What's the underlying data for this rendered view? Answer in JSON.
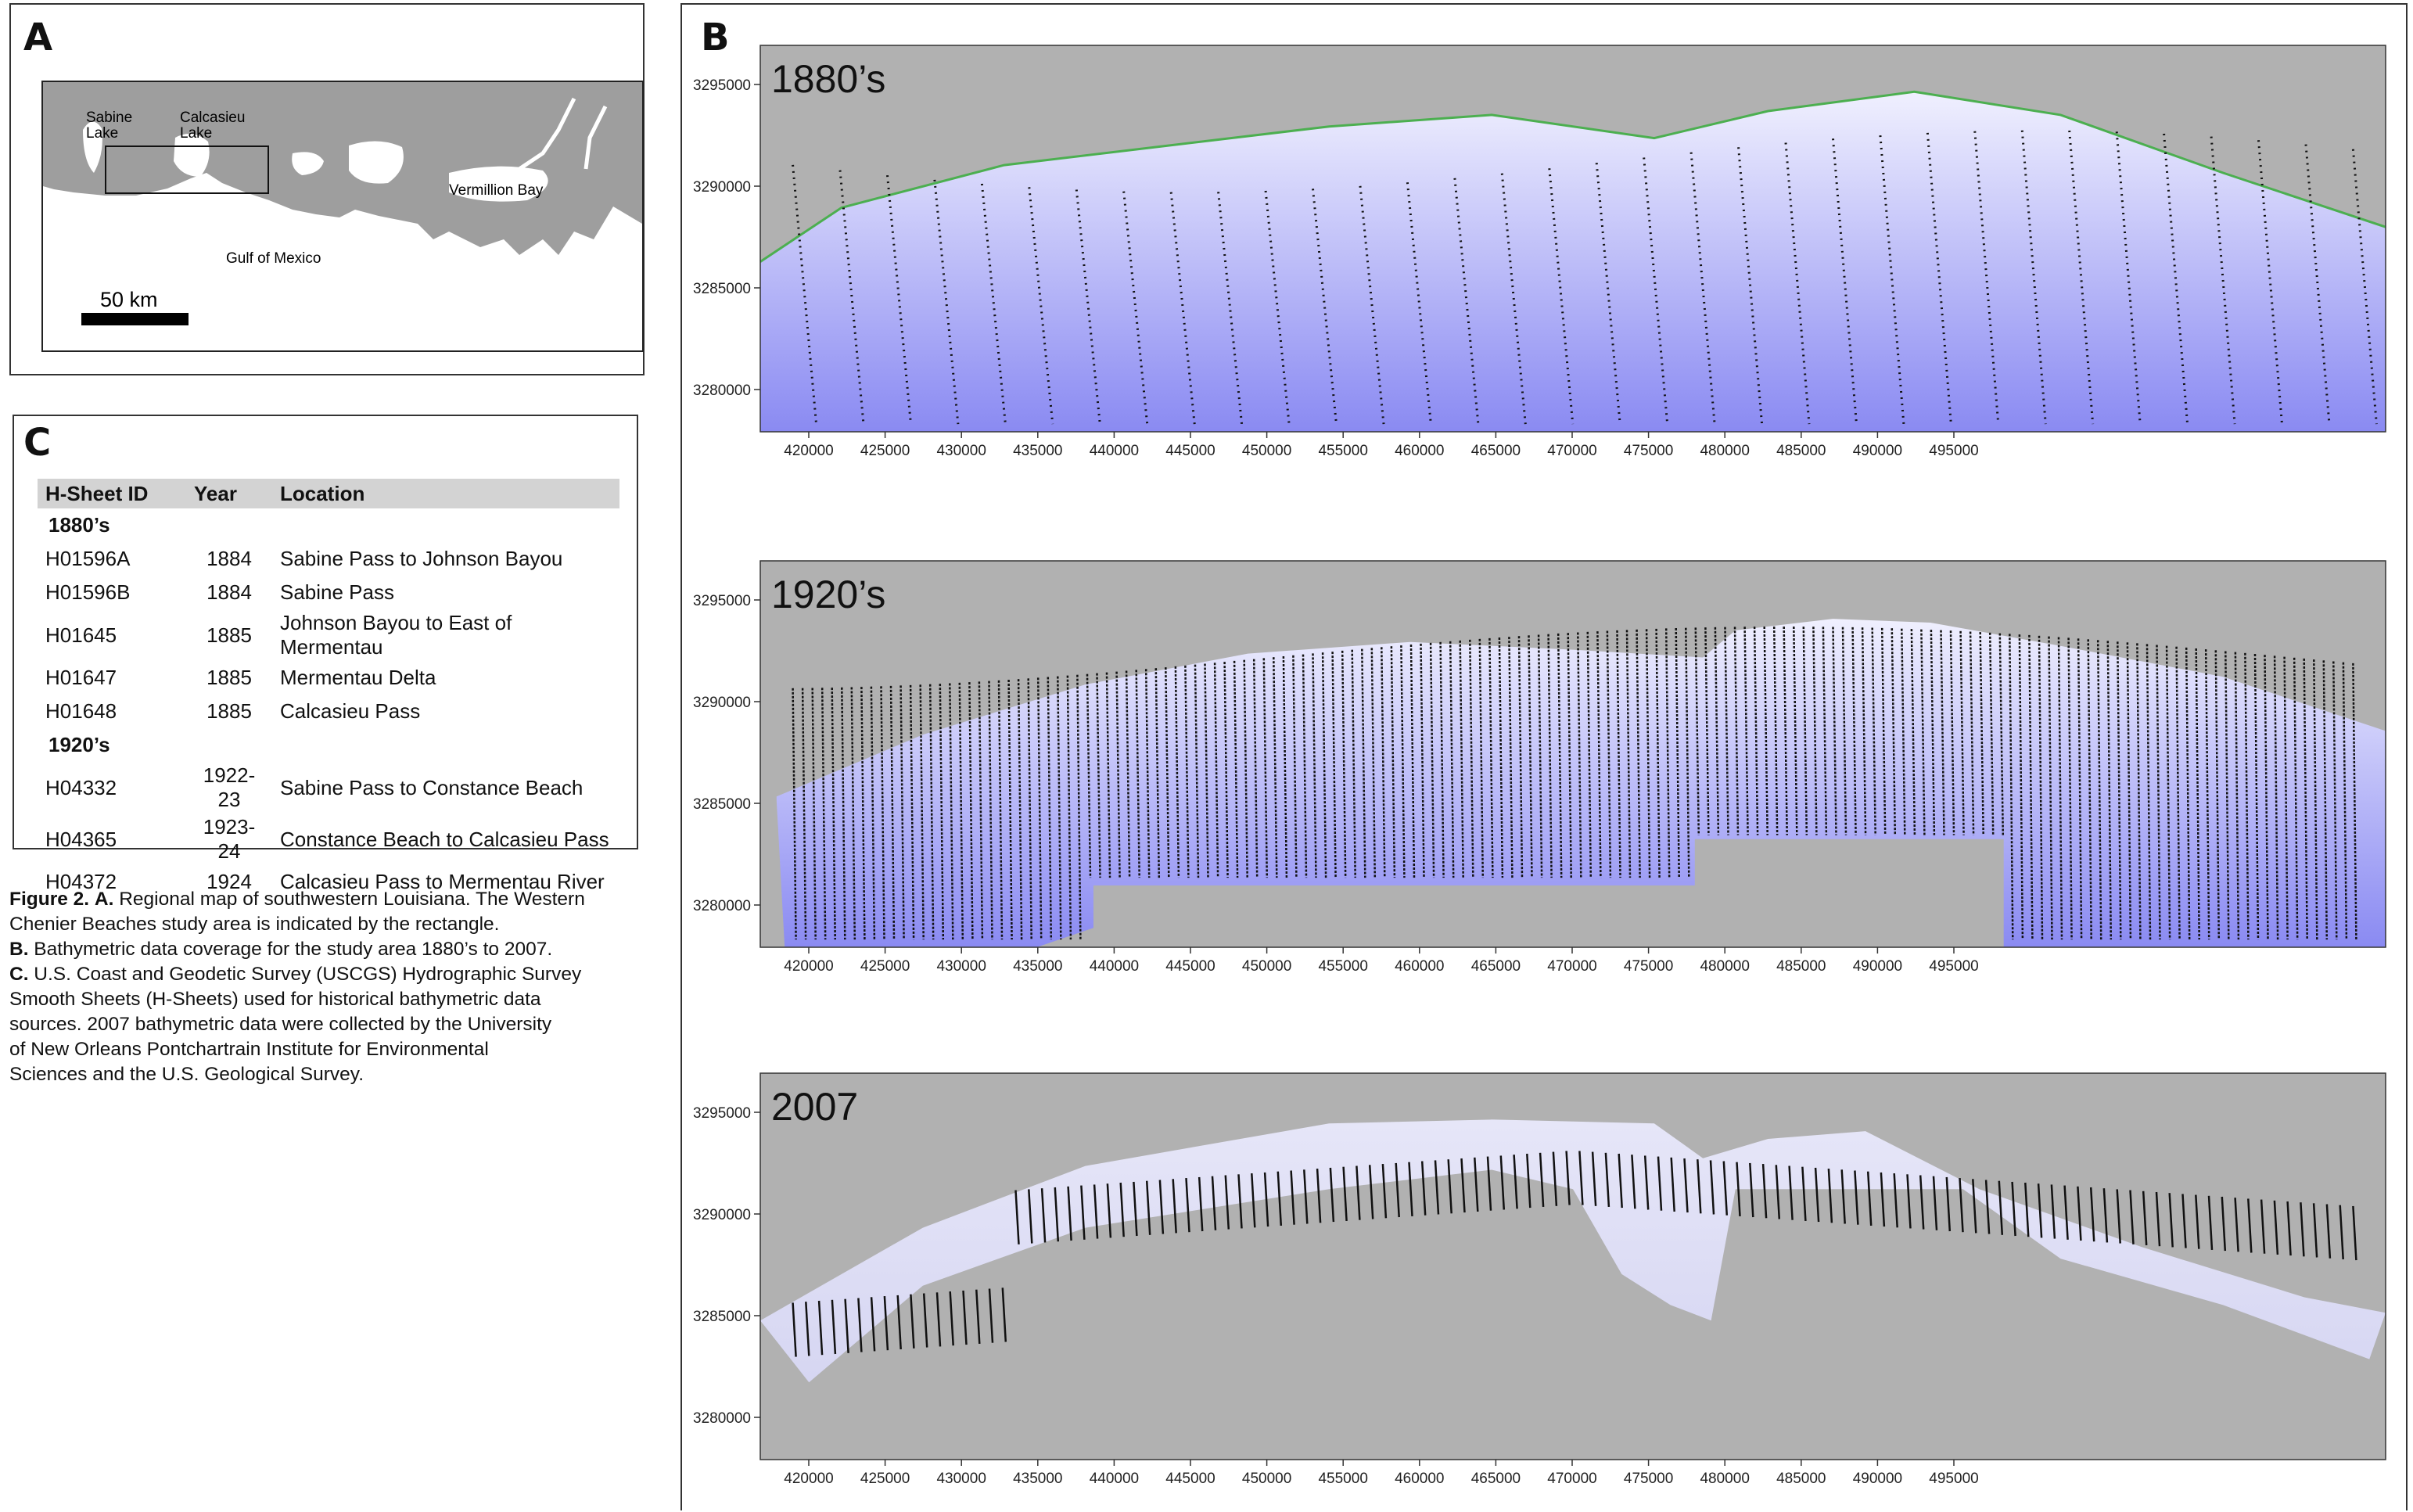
{
  "panel_a": {
    "letter": "A",
    "labels": {
      "sabine_line1": "Sabine",
      "sabine_line2": "Lake",
      "calcasieu_line1": "Calcasieu",
      "calcasieu_line2": "Lake",
      "vermillion": "Vermillion Bay",
      "gulf": "Gulf of Mexico"
    },
    "scale_label": "50 km",
    "colors": {
      "land": "#9e9e9e",
      "water": "#ffffff"
    }
  },
  "panel_b": {
    "letter": "B",
    "x_ticks": [
      "420000",
      "425000",
      "430000",
      "435000",
      "440000",
      "445000",
      "450000",
      "455000",
      "460000",
      "465000",
      "470000",
      "475000",
      "480000",
      "485000",
      "490000",
      "495000"
    ],
    "y_ticks": [
      "3295000",
      "3290000",
      "3285000",
      "3280000"
    ],
    "maps": [
      {
        "label": "1880’s"
      },
      {
        "label": "1920’s"
      },
      {
        "label": "2007"
      }
    ],
    "colors": {
      "land": "#b1b1b1",
      "water_light": "#eeeefe",
      "water_deep": "#8d8df2",
      "shoreline": "#4caf50",
      "track": "#111111"
    }
  },
  "panel_c": {
    "letter": "C",
    "headers": {
      "id": "H-Sheet ID",
      "year": "Year",
      "location": "Location"
    },
    "groups": [
      {
        "label": "1880’s",
        "rows": [
          {
            "id": "H01596A",
            "year": "1884",
            "location": "Sabine Pass to Johnson Bayou"
          },
          {
            "id": "H01596B",
            "year": "1884",
            "location": "Sabine Pass"
          },
          {
            "id": "H01645",
            "year": "1885",
            "location": "Johnson Bayou to East of Mermentau"
          },
          {
            "id": "H01647",
            "year": "1885",
            "location": "Mermentau Delta"
          },
          {
            "id": "H01648",
            "year": "1885",
            "location": "Calcasieu Pass"
          }
        ]
      },
      {
        "label": "1920’s",
        "rows": [
          {
            "id": "H04332",
            "year": "1922-23",
            "location": "Sabine Pass to Constance Beach"
          },
          {
            "id": "H04365",
            "year": "1923-24",
            "location": "Constance Beach to Calcasieu Pass"
          },
          {
            "id": "H04372",
            "year": "1924",
            "location": "Calcasieu Pass to Mermentau River"
          }
        ]
      }
    ]
  },
  "caption": {
    "fig": "Figure 2.",
    "a_label": "A.",
    "a_text_1": " Regional map of southwestern Louisiana. The Western",
    "a_text_2": "Chenier Beaches study area is indicated by the rectangle.",
    "b_label": "B.",
    "b_text": " Bathymetric data coverage for the study area 1880’s to 2007.",
    "c_label": "C.",
    "c_text_1": " U.S. Coast and Geodetic Survey (USCGS) Hydrographic Survey",
    "c_text_2": "Smooth Sheets (H-Sheets) used for historical bathymetric data",
    "c_text_3": "sources. 2007 bathymetric data were collected by the University",
    "c_text_4": "of New Orleans Pontchartrain Institute for Environmental",
    "c_text_5": "Sciences and the U.S. Geological Survey."
  }
}
